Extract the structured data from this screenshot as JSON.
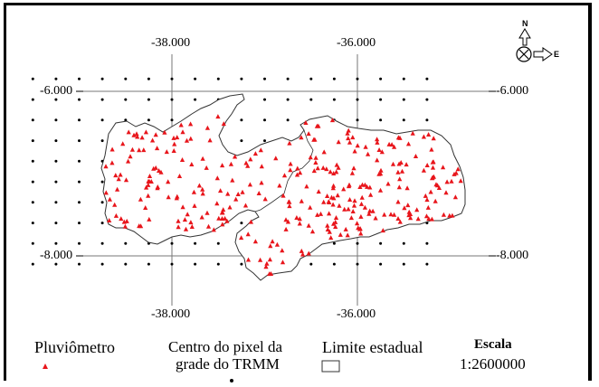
{
  "map": {
    "lon_labels": {
      "west": "-38.000",
      "east": "-36.000"
    },
    "lat_labels": {
      "north": "-6.000",
      "south": "-8.000"
    },
    "compass": {
      "north": "N",
      "east": "E"
    },
    "colors": {
      "gauge": "#e8151b",
      "grid_dot": "#000000",
      "border": "#000000",
      "outline": "#333333"
    },
    "grid_lon_start": -39.5,
    "grid_lon_step": 0.25,
    "grid_lat_start": -5.85,
    "grid_lat_step": 0.25
  },
  "legend": {
    "pluviometro": "Pluviômetro",
    "centro_line1": "Centro do pixel da",
    "centro_line2": "grade do TRMM",
    "limite": "Limite estadual",
    "escala_title": "Escala",
    "escala_value": "1:2600000"
  }
}
